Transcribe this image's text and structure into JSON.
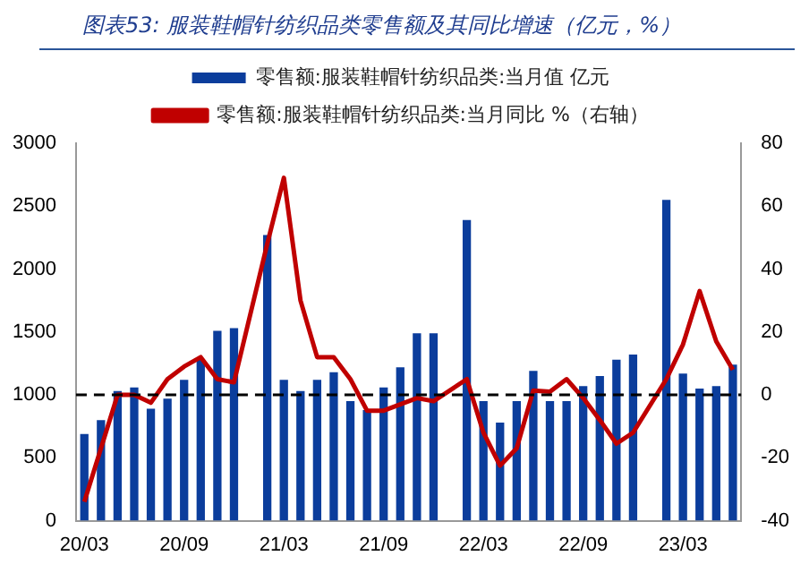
{
  "chart_data": {
    "type": "bar",
    "title": "图表53: 服装鞋帽针纺织品类零售额及其同比增速（亿元，%）",
    "categories": [
      "20/03",
      null,
      null,
      null,
      null,
      null,
      "20/09",
      null,
      null,
      null,
      null,
      null,
      "21/03",
      null,
      null,
      null,
      null,
      null,
      "21/09",
      null,
      null,
      null,
      null,
      null,
      "22/03",
      null,
      null,
      null,
      null,
      null,
      "22/09",
      null,
      null,
      null,
      null,
      null,
      "23/03",
      null,
      null,
      null
    ],
    "series": [
      {
        "name": "零售额:服装鞋帽针纺织品类:当月值 亿元",
        "color": "#0b3d9c",
        "values": [
          690,
          800,
          1030,
          1060,
          890,
          970,
          1120,
          1280,
          1510,
          1530,
          null,
          2270,
          1120,
          1030,
          1120,
          1180,
          950,
          880,
          1060,
          1220,
          1490,
          1490,
          null,
          2390,
          950,
          780,
          950,
          1190,
          950,
          950,
          1070,
          1150,
          1280,
          1320,
          null,
          2550,
          1170,
          1050,
          1070,
          1240
        ]
      },
      {
        "name": "零售额:服装鞋帽针纺织品类:当月同比 %（右轴）",
        "type": "line",
        "axis": "y2",
        "color": "#c00000",
        "values": [
          -34,
          -17,
          0,
          0,
          -2.5,
          5,
          9,
          12,
          5,
          4,
          null,
          48,
          69,
          30,
          12,
          12,
          5,
          -5,
          -5,
          -3,
          -1,
          -2,
          null,
          5,
          -12,
          -22.5,
          -17,
          1.4,
          1,
          5,
          -1,
          -8,
          -15.5,
          -12,
          null,
          5,
          16,
          33,
          17,
          8
        ]
      }
    ],
    "ylim": [
      0,
      3000
    ],
    "yticks": [
      0,
      500,
      1000,
      1500,
      2000,
      2500,
      3000
    ],
    "y2lim": [
      -40,
      80
    ],
    "y2ticks": [
      -40,
      -20,
      0,
      20,
      40,
      60,
      80
    ],
    "ref_lines": [
      {
        "axis": "y2",
        "value": 0,
        "color": "#000000",
        "line_style": "dashed"
      }
    ],
    "legend": "top",
    "grid": false,
    "marker": "none",
    "line_style": "solid"
  }
}
